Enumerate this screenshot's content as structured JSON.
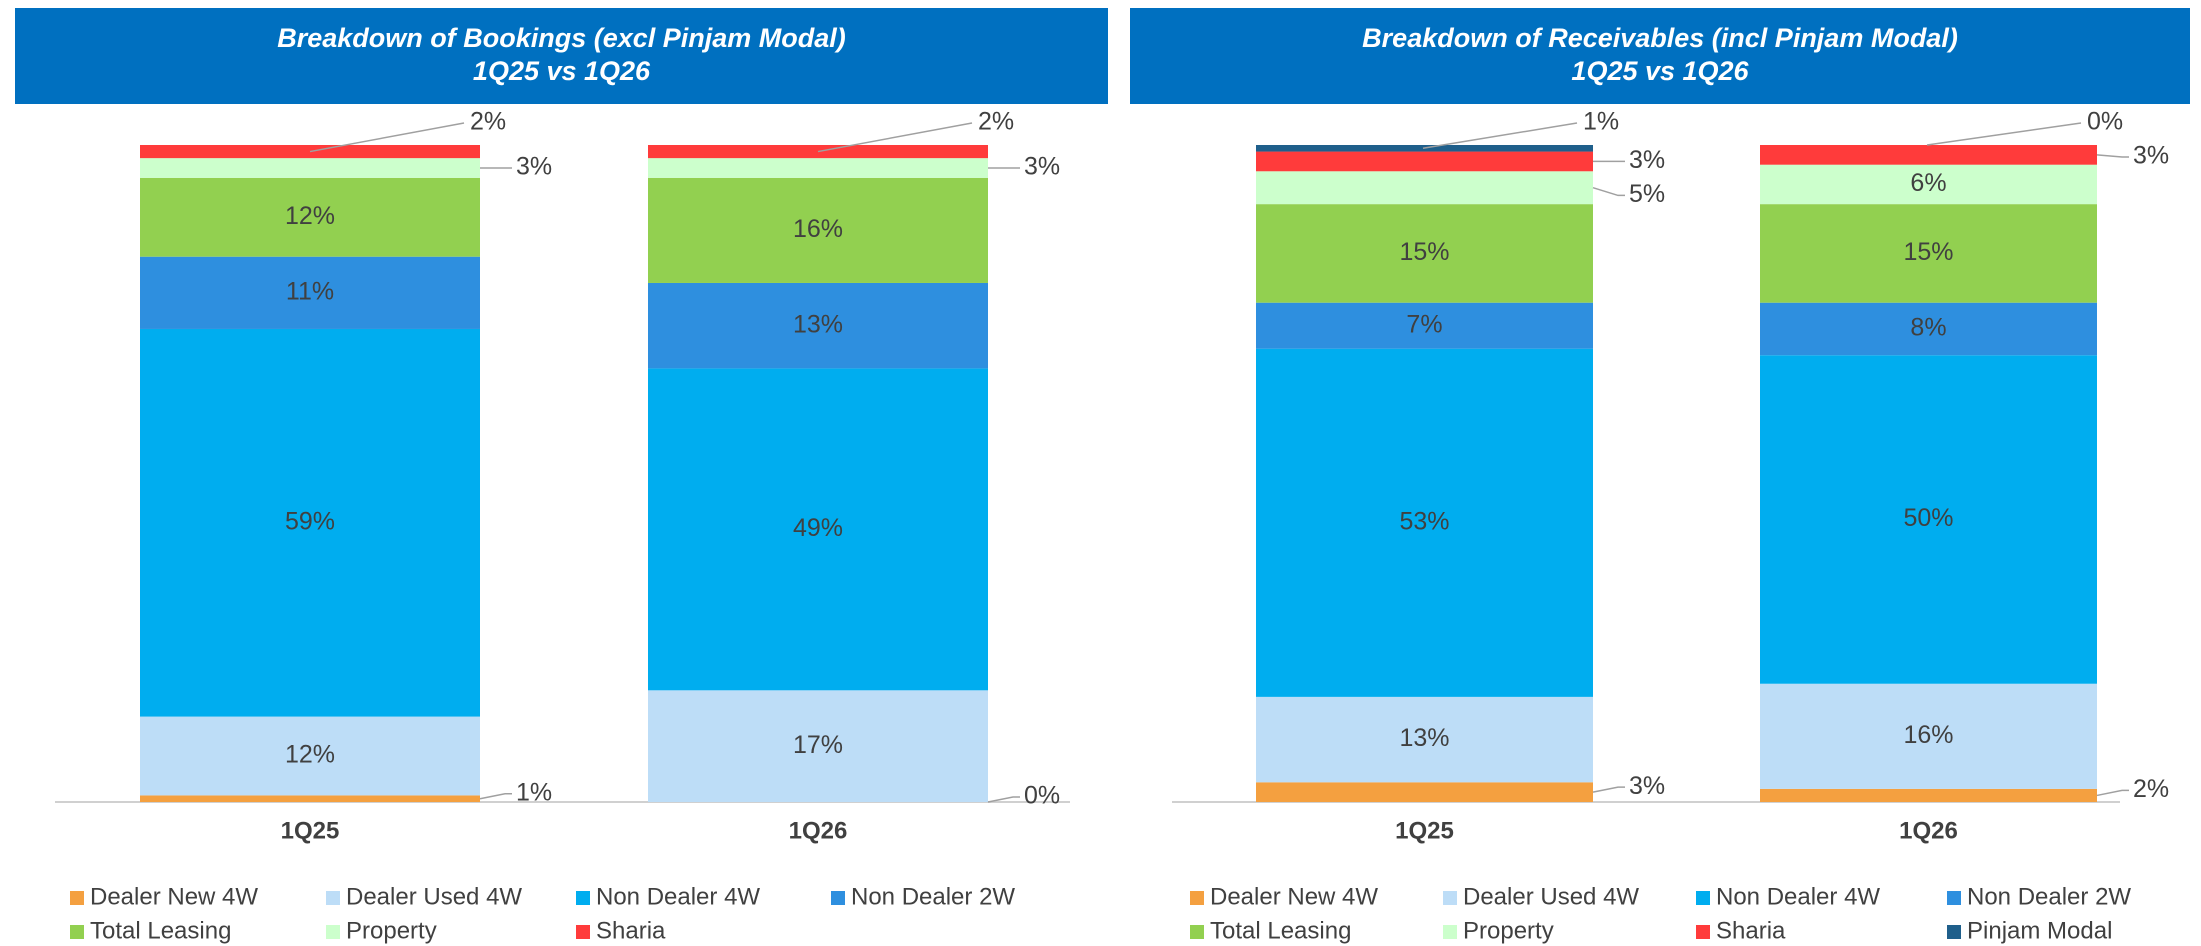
{
  "chart_data": [
    {
      "type": "bar",
      "stacked": true,
      "title": "Breakdown of Bookings (excl Pinjam Modal)",
      "subtitle": "1Q25 vs 1Q26",
      "categories": [
        "1Q25",
        "1Q26"
      ],
      "ylim": [
        0,
        100
      ],
      "series": [
        {
          "name": "Dealer New 4W",
          "color": "#f4a040",
          "values": [
            1,
            0
          ],
          "value_labels": [
            "1%",
            "0%"
          ]
        },
        {
          "name": "Dealer Used 4W",
          "color": "#bdddf7",
          "values": [
            12,
            17
          ],
          "value_labels": [
            "12%",
            "17%"
          ]
        },
        {
          "name": "Non Dealer 4W",
          "color": "#00adef",
          "values": [
            59,
            49
          ],
          "value_labels": [
            "59%",
            "49%"
          ]
        },
        {
          "name": "Non Dealer 2W",
          "color": "#2e8fdf",
          "values": [
            11,
            13
          ],
          "value_labels": [
            "11%",
            "13%"
          ]
        },
        {
          "name": "Total Leasing",
          "color": "#92d050",
          "values": [
            12,
            16
          ],
          "value_labels": [
            "12%",
            "16%"
          ]
        },
        {
          "name": "Property",
          "color": "#ccffcc",
          "values": [
            3,
            3
          ],
          "value_labels": [
            "3%",
            "3%"
          ]
        },
        {
          "name": "Sharia",
          "color": "#ff3b3b",
          "values": [
            2,
            2
          ],
          "value_labels": [
            "2%",
            "2%"
          ]
        }
      ]
    },
    {
      "type": "bar",
      "stacked": true,
      "title": "Breakdown of Receivables (incl Pinjam Modal)",
      "subtitle": "1Q25 vs 1Q26",
      "categories": [
        "1Q25",
        "1Q26"
      ],
      "ylim": [
        0,
        100
      ],
      "series": [
        {
          "name": "Dealer New 4W",
          "color": "#f4a040",
          "values": [
            3,
            2
          ],
          "value_labels": [
            "3%",
            "2%"
          ]
        },
        {
          "name": "Dealer Used 4W",
          "color": "#bdddf7",
          "values": [
            13,
            16
          ],
          "value_labels": [
            "13%",
            "16%"
          ]
        },
        {
          "name": "Non Dealer 4W",
          "color": "#00adef",
          "values": [
            53,
            50
          ],
          "value_labels": [
            "53%",
            "50%"
          ]
        },
        {
          "name": "Non Dealer 2W",
          "color": "#2e8fdf",
          "values": [
            7,
            8
          ],
          "value_labels": [
            "7%",
            "8%"
          ]
        },
        {
          "name": "Total Leasing",
          "color": "#92d050",
          "values": [
            15,
            15
          ],
          "value_labels": [
            "15%",
            "15%"
          ]
        },
        {
          "name": "Property",
          "color": "#ccffcc",
          "values": [
            5,
            6
          ],
          "value_labels": [
            "5%",
            "6%"
          ]
        },
        {
          "name": "Sharia",
          "color": "#ff3b3b",
          "values": [
            3,
            3
          ],
          "value_labels": [
            "3%",
            "3%"
          ]
        },
        {
          "name": "Pinjam Modal",
          "color": "#1f5f8b",
          "values": [
            1,
            0
          ],
          "value_labels": [
            "1%",
            "0%"
          ]
        }
      ]
    }
  ]
}
